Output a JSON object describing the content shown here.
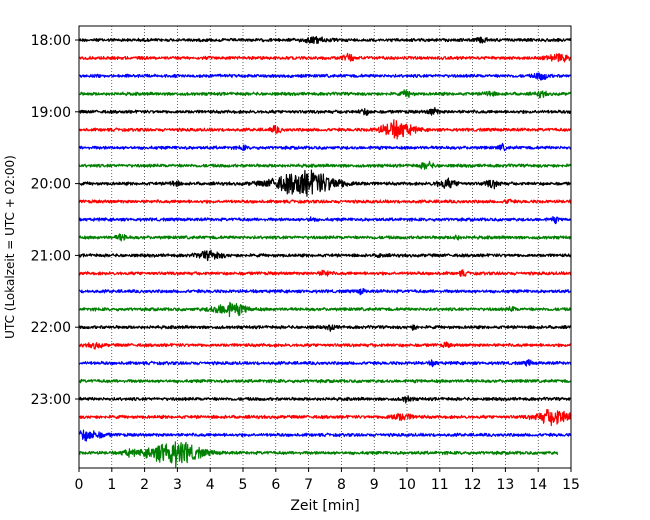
{
  "chart_data": {
    "type": "line",
    "title": "",
    "xlabel": "Zeit  [min]",
    "ylabel": "UTC (Lokalzeit = UTC + 02:00)",
    "xlim": [
      0,
      15
    ],
    "x_ticks": [
      0,
      1,
      2,
      3,
      4,
      5,
      6,
      7,
      8,
      9,
      10,
      11,
      12,
      13,
      14,
      15
    ],
    "x_tick_labels": [
      "0",
      "1",
      "2",
      "3",
      "4",
      "5",
      "6",
      "7",
      "8",
      "9",
      "10",
      "11",
      "12",
      "13",
      "14",
      "15"
    ],
    "y_tick_labels": [
      "18:00",
      "19:00",
      "20:00",
      "21:00",
      "22:00",
      "23:00"
    ],
    "y_tick_trace_index": [
      0,
      4,
      8,
      12,
      16,
      20
    ],
    "vertical_grid": true,
    "minutes_per_trace": 15,
    "color_cycle": [
      "#000000",
      "#ff0000",
      "#0000ff",
      "#008000"
    ],
    "traces": [
      {
        "start": "18:00",
        "color": "#000000",
        "end_minute": 15,
        "events": [
          {
            "t": 7.2,
            "amp": 0.25,
            "w": 0.35
          },
          {
            "t": 12.3,
            "amp": 0.25,
            "w": 0.15
          }
        ]
      },
      {
        "start": "18:15",
        "color": "#ff0000",
        "end_minute": 15,
        "events": [
          {
            "t": 8.2,
            "amp": 0.35,
            "w": 0.15
          },
          {
            "t": 14.6,
            "amp": 0.35,
            "w": 0.3
          }
        ]
      },
      {
        "start": "18:30",
        "color": "#0000ff",
        "end_minute": 15,
        "events": [
          {
            "t": 14.1,
            "amp": 0.35,
            "w": 0.2
          }
        ]
      },
      {
        "start": "18:45",
        "color": "#008000",
        "end_minute": 15,
        "events": [
          {
            "t": 10,
            "amp": 0.3,
            "w": 0.15
          },
          {
            "t": 12.5,
            "amp": 0.25,
            "w": 0.15
          },
          {
            "t": 14.1,
            "amp": 0.25,
            "w": 0.15
          }
        ]
      },
      {
        "start": "19:00",
        "color": "#000000",
        "end_minute": 15,
        "events": [
          {
            "t": 8.7,
            "amp": 0.25,
            "w": 0.15
          },
          {
            "t": 10.8,
            "amp": 0.35,
            "w": 0.15
          }
        ]
      },
      {
        "start": "19:15",
        "color": "#ff0000",
        "end_minute": 15,
        "events": [
          {
            "t": 6,
            "amp": 0.3,
            "w": 0.15
          },
          {
            "t": 9.7,
            "amp": 0.85,
            "w": 0.45
          }
        ]
      },
      {
        "start": "19:30",
        "color": "#0000ff",
        "end_minute": 15,
        "events": [
          {
            "t": 5,
            "amp": 0.2,
            "w": 0.1
          },
          {
            "t": 12.9,
            "amp": 0.25,
            "w": 0.12
          }
        ]
      },
      {
        "start": "19:45",
        "color": "#008000",
        "end_minute": 15,
        "events": [
          {
            "t": 10.6,
            "amp": 0.3,
            "w": 0.2
          }
        ]
      },
      {
        "start": "20:00",
        "color": "#000000",
        "end_minute": 15,
        "events": [
          {
            "t": 2.9,
            "amp": 0.25,
            "w": 0.15
          },
          {
            "t": 6.9,
            "amp": 1.2,
            "w": 0.95
          },
          {
            "t": 11.2,
            "amp": 0.4,
            "w": 0.3
          },
          {
            "t": 12.6,
            "amp": 0.35,
            "w": 0.2
          }
        ]
      },
      {
        "start": "20:15",
        "color": "#ff0000",
        "end_minute": 15,
        "events": [
          {
            "t": 13.1,
            "amp": 0.2,
            "w": 0.1
          }
        ]
      },
      {
        "start": "20:30",
        "color": "#0000ff",
        "end_minute": 15,
        "events": [
          {
            "t": 7.1,
            "amp": 0.2,
            "w": 0.1
          },
          {
            "t": 14.5,
            "amp": 0.25,
            "w": 0.1
          }
        ]
      },
      {
        "start": "20:45",
        "color": "#008000",
        "end_minute": 15,
        "events": [
          {
            "t": 1.3,
            "amp": 0.3,
            "w": 0.15
          },
          {
            "t": 11.5,
            "amp": 0.2,
            "w": 0.1
          }
        ]
      },
      {
        "start": "21:00",
        "color": "#000000",
        "end_minute": 15,
        "events": [
          {
            "t": 4,
            "amp": 0.4,
            "w": 0.35
          },
          {
            "t": 9.2,
            "amp": 0.2,
            "w": 0.1
          }
        ]
      },
      {
        "start": "21:15",
        "color": "#ff0000",
        "end_minute": 15,
        "events": [
          {
            "t": 7.5,
            "amp": 0.25,
            "w": 0.15
          },
          {
            "t": 11.7,
            "amp": 0.25,
            "w": 0.1
          }
        ]
      },
      {
        "start": "21:30",
        "color": "#0000ff",
        "end_minute": 15,
        "events": [
          {
            "t": 8.6,
            "amp": 0.25,
            "w": 0.1
          }
        ]
      },
      {
        "start": "21:45",
        "color": "#008000",
        "end_minute": 15,
        "events": [
          {
            "t": 4.6,
            "amp": 0.6,
            "w": 0.5
          },
          {
            "t": 13.2,
            "amp": 0.2,
            "w": 0.1
          }
        ]
      },
      {
        "start": "22:00",
        "color": "#000000",
        "end_minute": 15,
        "events": [
          {
            "t": 7.7,
            "amp": 0.25,
            "w": 0.12
          },
          {
            "t": 10.2,
            "amp": 0.2,
            "w": 0.1
          }
        ]
      },
      {
        "start": "22:15",
        "color": "#ff0000",
        "end_minute": 15,
        "events": [
          {
            "t": 0.5,
            "amp": 0.25,
            "w": 0.2
          },
          {
            "t": 11.2,
            "amp": 0.2,
            "w": 0.1
          }
        ]
      },
      {
        "start": "22:30",
        "color": "#0000ff",
        "end_minute": 15,
        "events": [
          {
            "t": 10.8,
            "amp": 0.25,
            "w": 0.1
          },
          {
            "t": 13.7,
            "amp": 0.25,
            "w": 0.1
          }
        ]
      },
      {
        "start": "22:45",
        "color": "#008000",
        "end_minute": 15,
        "events": []
      },
      {
        "start": "23:00",
        "color": "#000000",
        "end_minute": 15,
        "events": [
          {
            "t": 10,
            "amp": 0.25,
            "w": 0.15
          }
        ]
      },
      {
        "start": "23:15",
        "color": "#ff0000",
        "end_minute": 15,
        "events": [
          {
            "t": 9.8,
            "amp": 0.3,
            "w": 0.35
          },
          {
            "t": 14.5,
            "amp": 0.75,
            "w": 0.5
          }
        ]
      },
      {
        "start": "23:30",
        "color": "#0000ff",
        "end_minute": 15,
        "events": [
          {
            "t": 0.2,
            "amp": 0.45,
            "w": 0.5
          }
        ]
      },
      {
        "start": "23:45",
        "color": "#008000",
        "end_minute": 14.6,
        "events": [
          {
            "t": 1.5,
            "amp": 0.25,
            "w": 0.2
          },
          {
            "t": 2.9,
            "amp": 1.2,
            "w": 0.75
          }
        ]
      }
    ]
  }
}
